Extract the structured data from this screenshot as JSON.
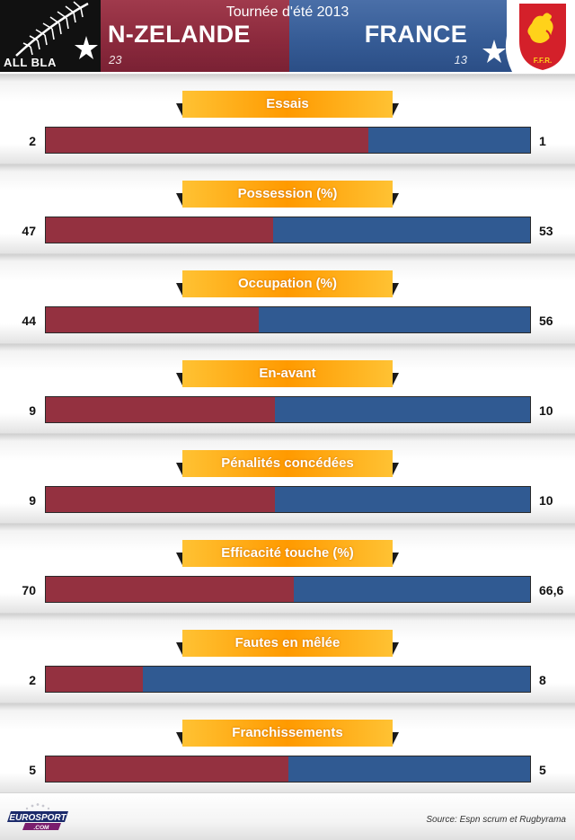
{
  "header": {
    "event": "Tournée d'été 2013",
    "home_team": "N-ZELANDE",
    "away_team": "FRANCE",
    "home_score": "23",
    "away_score": "13",
    "home_logo_text": "ALL BLA",
    "away_logo_text": "F.F.R."
  },
  "colors": {
    "home": "#943140",
    "away": "#305a92",
    "tag": "#ff9a00"
  },
  "chart_data": {
    "type": "bar",
    "orientation": "horizontal-stacked-proportional",
    "series": [
      {
        "name": "N-ZELANDE",
        "values": [
          2,
          47,
          44,
          9,
          9,
          70,
          2,
          5
        ]
      },
      {
        "name": "FRANCE",
        "values": [
          1,
          53,
          56,
          10,
          10,
          66.6,
          8,
          5
        ]
      }
    ],
    "categories": [
      "Essais",
      "Possession (%)",
      "Occupation (%)",
      "En-avant",
      "Pénalités concédées",
      "Efficacité touche (%)",
      "Fautes en mêlée",
      "Franchissements"
    ],
    "stats": [
      {
        "label": "Essais",
        "home": "2",
        "away": "1",
        "home_value": 2,
        "away_value": 1
      },
      {
        "label": "Possession (%)",
        "home": "47",
        "away": "53",
        "home_value": 47,
        "away_value": 53
      },
      {
        "label": "Occupation (%)",
        "home": "44",
        "away": "56",
        "home_value": 44,
        "away_value": 56
      },
      {
        "label": "En-avant",
        "home": "9",
        "away": "10",
        "home_value": 9,
        "away_value": 10
      },
      {
        "label": "Pénalités concédées",
        "home": "9",
        "away": "10",
        "home_value": 9,
        "away_value": 10
      },
      {
        "label": "Efficacité touche (%)",
        "home": "70",
        "away": "66,6",
        "home_value": 70,
        "away_value": 66.6
      },
      {
        "label": "Fautes en mêlée",
        "home": "2",
        "away": "8",
        "home_value": 2,
        "away_value": 8
      },
      {
        "label": "Franchissements",
        "home": "5",
        "away": "5",
        "home_value": 5,
        "away_value": 5
      }
    ]
  },
  "footer": {
    "source": "Source: Espn scrum et Rugbyrama",
    "brand_top": "EUROSPORT",
    "brand_bottom": ".COM"
  }
}
